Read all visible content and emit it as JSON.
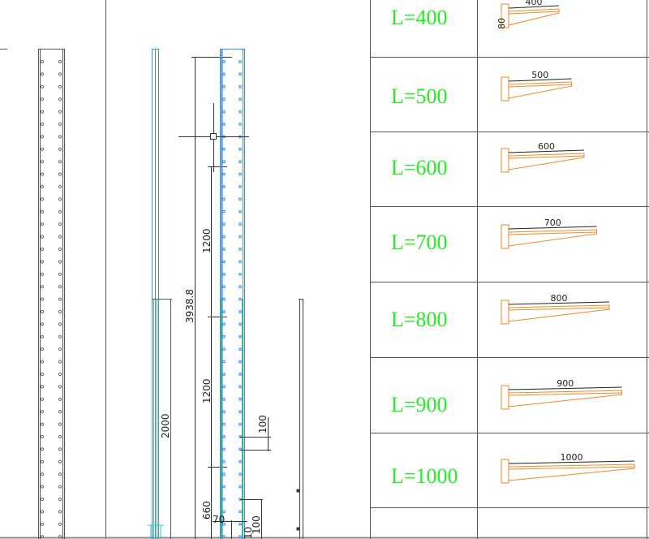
{
  "colors": {
    "background": "#ffffff",
    "line": "#555555",
    "post_blue": "#3a8ee6",
    "post_green": "#33cc66",
    "label_green": "#22ee22",
    "bracket_orange": "#f08a24",
    "cyan": "#22cccc"
  },
  "elevation": {
    "dims": {
      "total_height": "3938.8",
      "post_length": "2000",
      "spacing_upper": "1200",
      "spacing_lower": "1200",
      "hole_pitch": "100",
      "bottom_offset": "660",
      "bottom_a": "70",
      "bottom_b": "100",
      "bottom_c": "10"
    }
  },
  "bracket_table": {
    "rows": [
      {
        "label": "L=400",
        "length": "400",
        "length_mm": 400,
        "height_dim": "80"
      },
      {
        "label": "L=500",
        "length": "500",
        "length_mm": 500
      },
      {
        "label": "L=600",
        "length": "600",
        "length_mm": 600
      },
      {
        "label": "L=700",
        "length": "700",
        "length_mm": 700
      },
      {
        "label": "L=800",
        "length": "800",
        "length_mm": 800
      },
      {
        "label": "L=900",
        "length": "900",
        "length_mm": 900
      },
      {
        "label": "L=1000",
        "length": "1000",
        "length_mm": 1000
      }
    ]
  }
}
